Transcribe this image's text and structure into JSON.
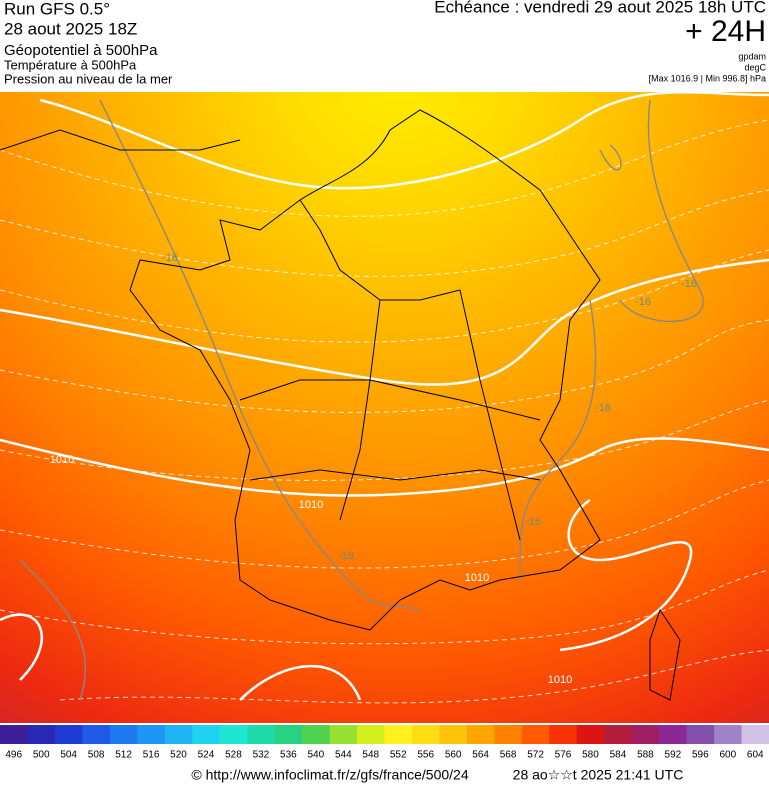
{
  "header": {
    "run": "Run GFS 0.5°",
    "date": "28 aout 2025 18Z",
    "line1": "Géopotentiel à 500hPa",
    "line2": "Température à 500hPa",
    "line3": "Pression au niveau de la mer",
    "echeance": "Echéance : vendredi 29 aout 2025 18h UTC",
    "range": "+ 24H",
    "unit1": "gpdam",
    "unit2": "degC",
    "minmax": "[Max 1016.9 | Min 996.8] hPa"
  },
  "map": {
    "isotherm_labels": [
      "-16",
      "-16",
      "-16",
      "-16",
      "-16",
      "-16"
    ],
    "isobar_labels": [
      "1010",
      "1010",
      "1010",
      "1010"
    ]
  },
  "colorbar": {
    "ticks": [
      496,
      500,
      504,
      508,
      512,
      516,
      520,
      524,
      528,
      532,
      536,
      540,
      544,
      548,
      552,
      556,
      560,
      564,
      568,
      572,
      576,
      580,
      584,
      588,
      592,
      596,
      600,
      604
    ],
    "colors": [
      "#3c1e96",
      "#2828b4",
      "#1e3cd2",
      "#1e5ae6",
      "#1e78f0",
      "#1e96f5",
      "#1eb4f5",
      "#1ed2f0",
      "#1ee6d2",
      "#1edcaa",
      "#28d282",
      "#50d250",
      "#96e132",
      "#d2f01e",
      "#fff01e",
      "#ffdc14",
      "#ffc30a",
      "#ffa500",
      "#ff8200",
      "#ff5a00",
      "#f53200",
      "#dc1414",
      "#b41e3c",
      "#a01e64",
      "#8c2896",
      "#8250aa",
      "#a082c8",
      "#d2c3e6"
    ]
  },
  "footer": {
    "url": "© http://www.infoclimat.fr/z/gfs/france/500/24",
    "stamp": "28 ao☆☆t 2025 21:41 UTC"
  }
}
